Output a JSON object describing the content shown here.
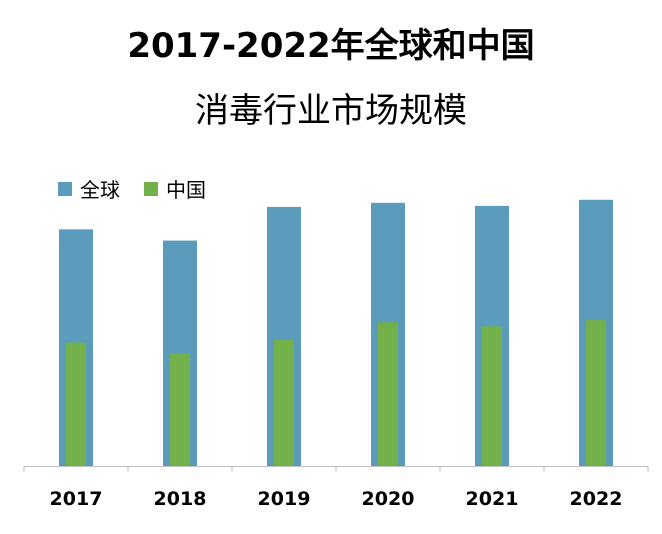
{
  "title_line1": "2017-2022年全球和中国",
  "title_line2": "消毒行业市场规模",
  "colors": {
    "global": "#5b9bbb",
    "china": "#72b04a",
    "axis": "#bfbfbf"
  },
  "chart_data": {
    "type": "bar",
    "title": "2017-2022年全球和中国消毒行业市场规模",
    "categories": [
      "2017",
      "2018",
      "2019",
      "2020",
      "2021",
      "2022"
    ],
    "series": [
      {
        "name": "全球",
        "values": [
          232,
          221,
          254,
          258,
          255,
          261
        ]
      },
      {
        "name": "中国",
        "values": [
          121,
          110,
          124,
          141,
          137,
          143
        ]
      }
    ],
    "ylim": [
      0,
      300
    ],
    "xlabel": "",
    "ylabel": "",
    "grid": false,
    "legend": "top-left"
  }
}
